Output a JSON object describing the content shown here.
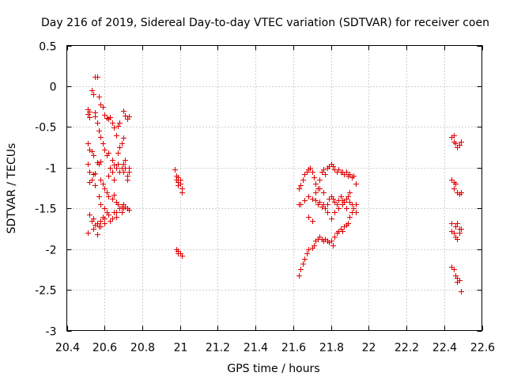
{
  "chart_data": {
    "type": "scatter",
    "title": "Day 216 of 2019, Sidereal Day-to-day VTEC variation (SDTVAR) for receiver coen",
    "xlabel": "GPS time / hours",
    "ylabel": "SDTVAR / TECUs",
    "xlim": [
      20.4,
      22.6
    ],
    "ylim": [
      -3,
      0.5
    ],
    "grid": true,
    "marker": "+",
    "color": "#e00000",
    "x_ticks": [
      20.4,
      20.6,
      20.8,
      21,
      21.2,
      21.4,
      21.6,
      21.8,
      22,
      22.2,
      22.4,
      22.6
    ],
    "x_tick_labels": [
      "20.4",
      "20.6",
      "20.8",
      "21",
      "21.2",
      "21.4",
      "21.6",
      "21.8",
      "22",
      "22.2",
      "22.4",
      "22.6"
    ],
    "y_ticks": [
      0.5,
      0,
      -0.5,
      -1,
      -1.5,
      -2,
      -2.5,
      -3
    ],
    "y_tick_labels": [
      "0.5",
      "0",
      "-0.5",
      "-1",
      "-1.5",
      "-2",
      "-2.5",
      "-3"
    ],
    "series": [
      {
        "name": "SDTVAR",
        "points": [
          [
            20.51,
            -0.28
          ],
          [
            20.51,
            -0.34
          ],
          [
            20.52,
            -0.31
          ],
          [
            20.52,
            -0.38
          ],
          [
            20.53,
            -0.05
          ],
          [
            20.54,
            -0.1
          ],
          [
            20.55,
            -0.37
          ],
          [
            20.55,
            -0.32
          ],
          [
            20.55,
            0.12
          ],
          [
            20.56,
            0.12
          ],
          [
            20.57,
            -0.13
          ],
          [
            20.58,
            -0.22
          ],
          [
            20.59,
            -0.25
          ],
          [
            20.6,
            -0.35
          ],
          [
            20.61,
            -0.39
          ],
          [
            20.62,
            -0.4
          ],
          [
            20.63,
            -0.38
          ],
          [
            20.64,
            -0.45
          ],
          [
            20.65,
            -0.51
          ],
          [
            20.66,
            -0.6
          ],
          [
            20.67,
            -0.49
          ],
          [
            20.68,
            -0.45
          ],
          [
            20.7,
            -0.3
          ],
          [
            20.71,
            -0.36
          ],
          [
            20.72,
            -0.4
          ],
          [
            20.73,
            -0.37
          ],
          [
            20.56,
            -0.45
          ],
          [
            20.57,
            -0.55
          ],
          [
            20.58,
            -0.62
          ],
          [
            20.59,
            -0.7
          ],
          [
            20.6,
            -0.78
          ],
          [
            20.61,
            -0.85
          ],
          [
            20.62,
            -0.82
          ],
          [
            20.64,
            -0.9
          ],
          [
            20.65,
            -0.96
          ],
          [
            20.67,
            -0.82
          ],
          [
            20.68,
            -0.75
          ],
          [
            20.69,
            -0.7
          ],
          [
            20.7,
            -0.63
          ],
          [
            20.51,
            -0.7
          ],
          [
            20.52,
            -0.78
          ],
          [
            20.53,
            -0.8
          ],
          [
            20.54,
            -0.85
          ],
          [
            20.51,
            -0.95
          ],
          [
            20.52,
            -1.05
          ],
          [
            20.54,
            -1.08
          ],
          [
            20.55,
            -1.07
          ],
          [
            20.56,
            -0.93
          ],
          [
            20.57,
            -0.95
          ],
          [
            20.58,
            -0.92
          ],
          [
            20.58,
            -1.15
          ],
          [
            20.59,
            -1.2
          ],
          [
            20.6,
            -1.25
          ],
          [
            20.61,
            -1.3
          ],
          [
            20.62,
            -1.1
          ],
          [
            20.63,
            -1.0
          ],
          [
            20.64,
            -1.05
          ],
          [
            20.65,
            -1.15
          ],
          [
            20.66,
            -1.0
          ],
          [
            20.67,
            -0.95
          ],
          [
            20.68,
            -1.05
          ],
          [
            20.69,
            -1.0
          ],
          [
            20.7,
            -1.05
          ],
          [
            20.71,
            -1.0
          ],
          [
            20.72,
            -1.1
          ],
          [
            20.73,
            -1.05
          ],
          [
            20.7,
            -0.95
          ],
          [
            20.71,
            -0.9
          ],
          [
            20.72,
            -1.15
          ],
          [
            20.73,
            -1.0
          ],
          [
            20.52,
            -1.18
          ],
          [
            20.53,
            -1.15
          ],
          [
            20.55,
            -1.22
          ],
          [
            20.57,
            -1.35
          ],
          [
            20.58,
            -1.45
          ],
          [
            20.6,
            -1.5
          ],
          [
            20.61,
            -1.55
          ],
          [
            20.62,
            -1.35
          ],
          [
            20.64,
            -1.38
          ],
          [
            20.65,
            -1.33
          ],
          [
            20.66,
            -1.42
          ],
          [
            20.67,
            -1.45
          ],
          [
            20.68,
            -1.5
          ],
          [
            20.69,
            -1.55
          ],
          [
            20.7,
            -1.5
          ],
          [
            20.71,
            -1.48
          ],
          [
            20.72,
            -1.5
          ],
          [
            20.73,
            -1.52
          ],
          [
            20.7,
            -1.45
          ],
          [
            20.69,
            -1.48
          ],
          [
            20.52,
            -1.58
          ],
          [
            20.53,
            -1.65
          ],
          [
            20.54,
            -1.62
          ],
          [
            20.55,
            -1.7
          ],
          [
            20.56,
            -1.68
          ],
          [
            20.57,
            -1.72
          ],
          [
            20.58,
            -1.65
          ],
          [
            20.59,
            -1.6
          ],
          [
            20.6,
            -1.62
          ],
          [
            20.62,
            -1.58
          ],
          [
            20.63,
            -1.65
          ],
          [
            20.64,
            -1.62
          ],
          [
            20.65,
            -1.55
          ],
          [
            20.66,
            -1.55
          ],
          [
            20.51,
            -1.8
          ],
          [
            20.54,
            -1.75
          ],
          [
            20.56,
            -1.82
          ],
          [
            20.58,
            -1.72
          ],
          [
            20.6,
            -1.68
          ],
          [
            20.66,
            -1.6
          ],
          [
            20.97,
            -1.02
          ],
          [
            20.98,
            -1.1
          ],
          [
            20.98,
            -1.15
          ],
          [
            20.99,
            -1.12
          ],
          [
            20.99,
            -1.18
          ],
          [
            21.0,
            -1.2
          ],
          [
            21.0,
            -1.15
          ],
          [
            21.01,
            -1.25
          ],
          [
            21.01,
            -1.3
          ],
          [
            20.99,
            -1.22
          ],
          [
            20.98,
            -2.0
          ],
          [
            20.99,
            -2.02
          ],
          [
            20.99,
            -2.05
          ],
          [
            21.0,
            -2.05
          ],
          [
            21.01,
            -2.08
          ],
          [
            21.63,
            -2.32
          ],
          [
            21.64,
            -2.25
          ],
          [
            21.65,
            -2.18
          ],
          [
            21.66,
            -2.12
          ],
          [
            21.67,
            -2.05
          ],
          [
            21.68,
            -2.0
          ],
          [
            21.7,
            -1.98
          ],
          [
            21.71,
            -1.95
          ],
          [
            21.72,
            -1.9
          ],
          [
            21.73,
            -1.88
          ],
          [
            21.74,
            -1.85
          ],
          [
            21.75,
            -1.88
          ],
          [
            21.76,
            -1.9
          ],
          [
            21.77,
            -1.88
          ],
          [
            21.78,
            -1.9
          ],
          [
            21.79,
            -1.92
          ],
          [
            21.8,
            -1.9
          ],
          [
            21.81,
            -1.95
          ],
          [
            21.82,
            -1.85
          ],
          [
            21.83,
            -1.8
          ],
          [
            21.84,
            -1.78
          ],
          [
            21.85,
            -1.75
          ],
          [
            21.86,
            -1.78
          ],
          [
            21.87,
            -1.72
          ],
          [
            21.88,
            -1.7
          ],
          [
            21.89,
            -1.68
          ],
          [
            21.9,
            -1.6
          ],
          [
            21.91,
            -1.55
          ],
          [
            21.92,
            -1.5
          ],
          [
            21.93,
            -1.45
          ],
          [
            21.63,
            -1.25
          ],
          [
            21.64,
            -1.22
          ],
          [
            21.65,
            -1.15
          ],
          [
            21.66,
            -1.08
          ],
          [
            21.67,
            -1.05
          ],
          [
            21.68,
            -1.02
          ],
          [
            21.69,
            -1.0
          ],
          [
            21.7,
            -1.05
          ],
          [
            21.71,
            -1.12
          ],
          [
            21.72,
            -1.2
          ],
          [
            21.73,
            -1.25
          ],
          [
            21.74,
            -1.15
          ],
          [
            21.75,
            -1.05
          ],
          [
            21.76,
            -1.02
          ],
          [
            21.77,
            -1.08
          ],
          [
            21.78,
            -1.0
          ],
          [
            21.79,
            -0.98
          ],
          [
            21.8,
            -0.95
          ],
          [
            21.81,
            -0.98
          ],
          [
            21.82,
            -1.02
          ],
          [
            21.83,
            -1.05
          ],
          [
            21.84,
            -1.02
          ],
          [
            21.85,
            -1.05
          ],
          [
            21.86,
            -1.05
          ],
          [
            21.87,
            -1.08
          ],
          [
            21.88,
            -1.05
          ],
          [
            21.89,
            -1.1
          ],
          [
            21.9,
            -1.08
          ],
          [
            21.91,
            -1.12
          ],
          [
            21.92,
            -1.1
          ],
          [
            21.63,
            -1.45
          ],
          [
            21.64,
            -1.45
          ],
          [
            21.66,
            -1.4
          ],
          [
            21.68,
            -1.35
          ],
          [
            21.7,
            -1.38
          ],
          [
            21.72,
            -1.4
          ],
          [
            21.73,
            -1.45
          ],
          [
            21.74,
            -1.42
          ],
          [
            21.75,
            -1.48
          ],
          [
            21.76,
            -1.45
          ],
          [
            21.77,
            -1.5
          ],
          [
            21.78,
            -1.45
          ],
          [
            21.79,
            -1.38
          ],
          [
            21.8,
            -1.35
          ],
          [
            21.81,
            -1.38
          ],
          [
            21.82,
            -1.42
          ],
          [
            21.83,
            -1.45
          ],
          [
            21.84,
            -1.4
          ],
          [
            21.85,
            -1.35
          ],
          [
            21.86,
            -1.4
          ],
          [
            21.87,
            -1.42
          ],
          [
            21.88,
            -1.38
          ],
          [
            21.89,
            -1.35
          ],
          [
            21.9,
            -1.42
          ],
          [
            21.91,
            -1.45
          ],
          [
            21.92,
            -1.5
          ],
          [
            21.93,
            -1.55
          ],
          [
            21.68,
            -1.6
          ],
          [
            21.7,
            -1.65
          ],
          [
            21.72,
            -1.3
          ],
          [
            21.74,
            -1.25
          ],
          [
            21.76,
            -1.3
          ],
          [
            21.78,
            -1.55
          ],
          [
            21.8,
            -1.62
          ],
          [
            21.82,
            -1.55
          ],
          [
            21.84,
            -1.5
          ],
          [
            21.86,
            -1.45
          ],
          [
            21.88,
            -1.5
          ],
          [
            21.9,
            -1.3
          ],
          [
            21.93,
            -1.2
          ],
          [
            22.44,
            -0.62
          ],
          [
            22.45,
            -0.6
          ],
          [
            22.45,
            -0.68
          ],
          [
            22.46,
            -0.7
          ],
          [
            22.47,
            -0.75
          ],
          [
            22.48,
            -0.72
          ],
          [
            22.49,
            -0.68
          ],
          [
            22.44,
            -1.15
          ],
          [
            22.45,
            -1.18
          ],
          [
            22.46,
            -1.2
          ],
          [
            22.45,
            -1.25
          ],
          [
            22.47,
            -1.3
          ],
          [
            22.48,
            -1.32
          ],
          [
            22.49,
            -1.3
          ],
          [
            22.44,
            -1.68
          ],
          [
            22.44,
            -1.78
          ],
          [
            22.45,
            -1.8
          ],
          [
            22.46,
            -1.72
          ],
          [
            22.46,
            -1.85
          ],
          [
            22.47,
            -1.68
          ],
          [
            22.47,
            -1.88
          ],
          [
            22.48,
            -1.8
          ],
          [
            22.48,
            -1.75
          ],
          [
            22.49,
            -1.75
          ],
          [
            22.44,
            -2.22
          ],
          [
            22.45,
            -2.25
          ],
          [
            22.46,
            -2.32
          ],
          [
            22.47,
            -2.35
          ],
          [
            22.47,
            -2.4
          ],
          [
            22.48,
            -2.38
          ],
          [
            22.49,
            -2.52
          ]
        ]
      }
    ]
  }
}
